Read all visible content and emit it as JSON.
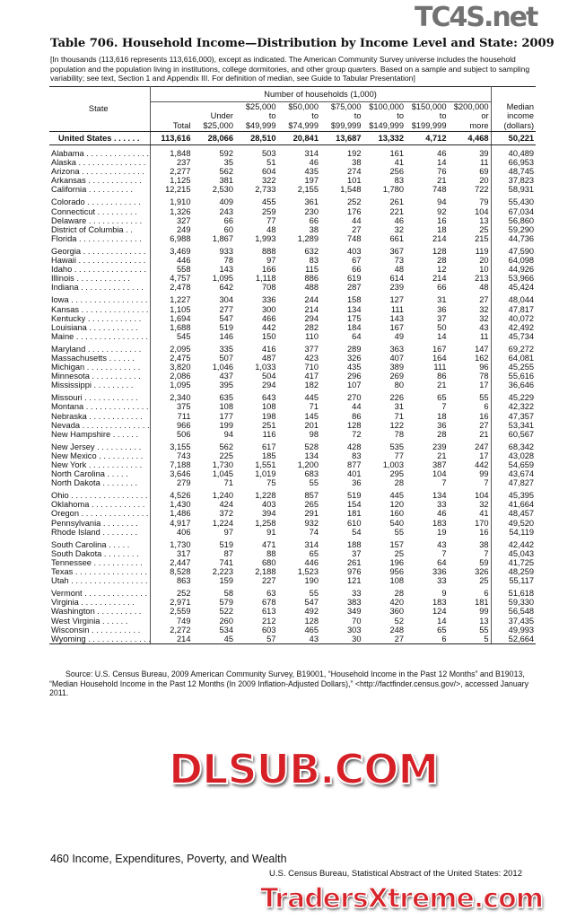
{
  "title": "Table 706. Household Income—Distribution by Income Level and State: 2009",
  "headnote": "[In thousands (113,616 represents 113,616,000), except as indicated. The American Community Survey universe includes the household population and the population living in institutions, college dormitories, and other group quarters. Based on a sample and subject to sampling variability; see text, Section 1 and Appendix III. For definition of median, see Guide to Tabular Presentation]",
  "header": {
    "state": "State",
    "span": "Number of households (1,000)",
    "columns": [
      "Total",
      "Under $25,000",
      "$25,000 to $49,999",
      "$50,000 to $74,999",
      "$75,000 to $99,999",
      "$100,000 to $149,999",
      "$150,000 to $199,999",
      "$200,000 or more"
    ],
    "median": "Median income (dollars)"
  },
  "us_row": [
    "United States",
    "113,616",
    "28,066",
    "28,510",
    "20,841",
    "13,687",
    "13,332",
    "4,712",
    "4,468",
    "50,221"
  ],
  "groups": [
    [
      [
        "Alabama",
        "1,848",
        "592",
        "503",
        "314",
        "192",
        "161",
        "46",
        "39",
        "40,489"
      ],
      [
        "Alaska",
        "237",
        "35",
        "51",
        "46",
        "38",
        "41",
        "14",
        "11",
        "66,953"
      ],
      [
        "Arizona",
        "2,277",
        "562",
        "604",
        "435",
        "274",
        "256",
        "76",
        "69",
        "48,745"
      ],
      [
        "Arkansas",
        "1,125",
        "381",
        "322",
        "197",
        "101",
        "83",
        "21",
        "20",
        "37,823"
      ],
      [
        "California",
        "12,215",
        "2,530",
        "2,733",
        "2,155",
        "1,548",
        "1,780",
        "748",
        "722",
        "58,931"
      ]
    ],
    [
      [
        "Colorado",
        "1,910",
        "409",
        "455",
        "361",
        "252",
        "261",
        "94",
        "79",
        "55,430"
      ],
      [
        "Connecticut",
        "1,326",
        "243",
        "259",
        "230",
        "176",
        "221",
        "92",
        "104",
        "67,034"
      ],
      [
        "Delaware",
        "327",
        "66",
        "77",
        "66",
        "44",
        "46",
        "16",
        "13",
        "56,860"
      ],
      [
        "District of Columbia",
        "249",
        "60",
        "48",
        "38",
        "27",
        "32",
        "18",
        "25",
        "59,290"
      ],
      [
        "Florida",
        "6,988",
        "1,867",
        "1,993",
        "1,289",
        "748",
        "661",
        "214",
        "215",
        "44,736"
      ]
    ],
    [
      [
        "Georgia",
        "3,469",
        "933",
        "888",
        "632",
        "403",
        "367",
        "128",
        "119",
        "47,590"
      ],
      [
        "Hawaii",
        "446",
        "78",
        "97",
        "83",
        "67",
        "73",
        "28",
        "20",
        "64,098"
      ],
      [
        "Idaho",
        "558",
        "143",
        "166",
        "115",
        "66",
        "48",
        "12",
        "10",
        "44,926"
      ],
      [
        "Illinois",
        "4,757",
        "1,095",
        "1,118",
        "886",
        "619",
        "614",
        "214",
        "213",
        "53,966"
      ],
      [
        "Indiana",
        "2,478",
        "642",
        "708",
        "488",
        "287",
        "239",
        "66",
        "48",
        "45,424"
      ]
    ],
    [
      [
        "Iowa",
        "1,227",
        "304",
        "336",
        "244",
        "158",
        "127",
        "31",
        "27",
        "48,044"
      ],
      [
        "Kansas",
        "1,105",
        "277",
        "300",
        "214",
        "134",
        "111",
        "36",
        "32",
        "47,817"
      ],
      [
        "Kentucky",
        "1,694",
        "547",
        "466",
        "294",
        "175",
        "143",
        "37",
        "32",
        "40,072"
      ],
      [
        "Louisiana",
        "1,688",
        "519",
        "442",
        "282",
        "184",
        "167",
        "50",
        "43",
        "42,492"
      ],
      [
        "Maine",
        "545",
        "146",
        "150",
        "110",
        "64",
        "49",
        "14",
        "11",
        "45,734"
      ]
    ],
    [
      [
        "Maryland",
        "2,095",
        "335",
        "416",
        "377",
        "289",
        "363",
        "167",
        "147",
        "69,272"
      ],
      [
        "Massachusetts",
        "2,475",
        "507",
        "487",
        "423",
        "326",
        "407",
        "164",
        "162",
        "64,081"
      ],
      [
        "Michigan",
        "3,820",
        "1,046",
        "1,033",
        "710",
        "435",
        "389",
        "111",
        "96",
        "45,255"
      ],
      [
        "Minnesota",
        "2,086",
        "437",
        "504",
        "417",
        "296",
        "269",
        "86",
        "78",
        "55,616"
      ],
      [
        "Mississippi",
        "1,095",
        "395",
        "294",
        "182",
        "107",
        "80",
        "21",
        "17",
        "36,646"
      ]
    ],
    [
      [
        "Missouri",
        "2,340",
        "635",
        "643",
        "445",
        "270",
        "226",
        "65",
        "55",
        "45,229"
      ],
      [
        "Montana",
        "375",
        "108",
        "108",
        "71",
        "44",
        "31",
        "7",
        "6",
        "42,322"
      ],
      [
        "Nebraska",
        "711",
        "177",
        "198",
        "145",
        "86",
        "71",
        "18",
        "16",
        "47,357"
      ],
      [
        "Nevada",
        "966",
        "199",
        "251",
        "201",
        "128",
        "122",
        "36",
        "27",
        "53,341"
      ],
      [
        "New Hampshire",
        "506",
        "94",
        "116",
        "98",
        "72",
        "78",
        "28",
        "21",
        "60,567"
      ]
    ],
    [
      [
        "New Jersey",
        "3,155",
        "562",
        "617",
        "528",
        "428",
        "535",
        "239",
        "247",
        "68,342"
      ],
      [
        "New Mexico",
        "743",
        "225",
        "185",
        "134",
        "83",
        "77",
        "21",
        "17",
        "43,028"
      ],
      [
        "New York",
        "7,188",
        "1,730",
        "1,551",
        "1,200",
        "877",
        "1,003",
        "387",
        "442",
        "54,659"
      ],
      [
        "North Carolina",
        "3,646",
        "1,045",
        "1,019",
        "683",
        "401",
        "295",
        "104",
        "99",
        "43,674"
      ],
      [
        "North Dakota",
        "279",
        "71",
        "75",
        "55",
        "36",
        "28",
        "7",
        "7",
        "47,827"
      ]
    ],
    [
      [
        "Ohio",
        "4,526",
        "1,240",
        "1,228",
        "857",
        "519",
        "445",
        "134",
        "104",
        "45,395"
      ],
      [
        "Oklahoma",
        "1,430",
        "424",
        "403",
        "265",
        "154",
        "120",
        "33",
        "32",
        "41,664"
      ],
      [
        "Oregon",
        "1,486",
        "372",
        "394",
        "291",
        "181",
        "160",
        "46",
        "41",
        "48,457"
      ],
      [
        "Pennsylvania",
        "4,917",
        "1,224",
        "1,258",
        "932",
        "610",
        "540",
        "183",
        "170",
        "49,520"
      ],
      [
        "Rhode Island",
        "406",
        "97",
        "91",
        "74",
        "54",
        "55",
        "19",
        "16",
        "54,119"
      ]
    ],
    [
      [
        "South Carolina",
        "1,730",
        "519",
        "471",
        "314",
        "188",
        "157",
        "43",
        "38",
        "42,442"
      ],
      [
        "South Dakota",
        "317",
        "87",
        "88",
        "65",
        "37",
        "25",
        "7",
        "7",
        "45,043"
      ],
      [
        "Tennessee",
        "2,447",
        "741",
        "680",
        "446",
        "261",
        "196",
        "64",
        "59",
        "41,725"
      ],
      [
        "Texas",
        "8,528",
        "2,223",
        "2,188",
        "1,523",
        "976",
        "956",
        "336",
        "326",
        "48,259"
      ],
      [
        "Utah",
        "863",
        "159",
        "227",
        "190",
        "121",
        "108",
        "33",
        "25",
        "55,117"
      ]
    ],
    [
      [
        "Vermont",
        "252",
        "58",
        "63",
        "55",
        "33",
        "28",
        "9",
        "6",
        "51,618"
      ],
      [
        "Virginia",
        "2,971",
        "579",
        "678",
        "547",
        "383",
        "420",
        "183",
        "181",
        "59,330"
      ],
      [
        "Washington",
        "2,559",
        "522",
        "613",
        "492",
        "349",
        "360",
        "124",
        "99",
        "56,548"
      ],
      [
        "West Virginia",
        "749",
        "260",
        "212",
        "128",
        "70",
        "52",
        "14",
        "13",
        "37,435"
      ],
      [
        "Wisconsin",
        "2,272",
        "534",
        "603",
        "465",
        "303",
        "248",
        "65",
        "55",
        "49,993"
      ],
      [
        "Wyoming",
        "214",
        "45",
        "57",
        "43",
        "30",
        "27",
        "6",
        "5",
        "52,664"
      ]
    ]
  ],
  "source": "Source: U.S. Census Bureau, 2009 American Community Survey, B19001, “Household Income in the Past 12 Months” and B19013, “Median Household Income in the Past 12 Months (In 2009 Inflation-Adjusted Dollars),” <http://factfinder.census.gov/>, accessed January 2011.",
  "footer": {
    "page": "460  Income, Expenditures, Poverty, and Wealth",
    "credit": "U.S. Census Bureau, Statistical Abstract of the United States: 2012"
  },
  "watermarks": [
    "TC4S.net",
    "DLSUB.COM",
    "TradersXtreme.com"
  ]
}
